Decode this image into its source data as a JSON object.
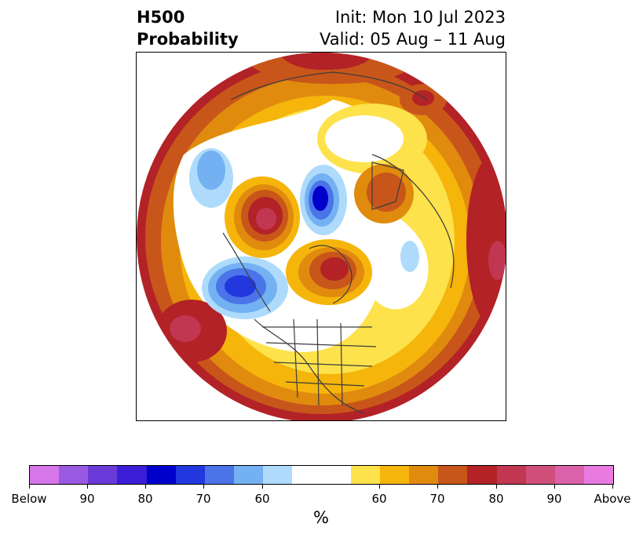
{
  "title": {
    "left_line1": "H500",
    "left_line2": "Probability",
    "right_line1": "Init: Mon 10 Jul 2023",
    "right_line2": "Valid: 05 Aug – 11 Aug"
  },
  "colorbar": {
    "unit": "%",
    "colors": [
      "#d775ea",
      "#9a59e2",
      "#6a3ad9",
      "#3b1ed6",
      "#0000cc",
      "#2237de",
      "#4a74e8",
      "#73b1f2",
      "#aedbfb",
      "#ffffff",
      "#ffffff",
      "#fde24b",
      "#f5b50b",
      "#e08b0e",
      "#c8561a",
      "#b22226",
      "#c13650",
      "#cf4f7a",
      "#db62aa",
      "#e87ae0"
    ],
    "tick_labels": [
      "Below",
      "90",
      "80",
      "70",
      "60",
      "60",
      "70",
      "80",
      "90",
      "Above"
    ]
  }
}
